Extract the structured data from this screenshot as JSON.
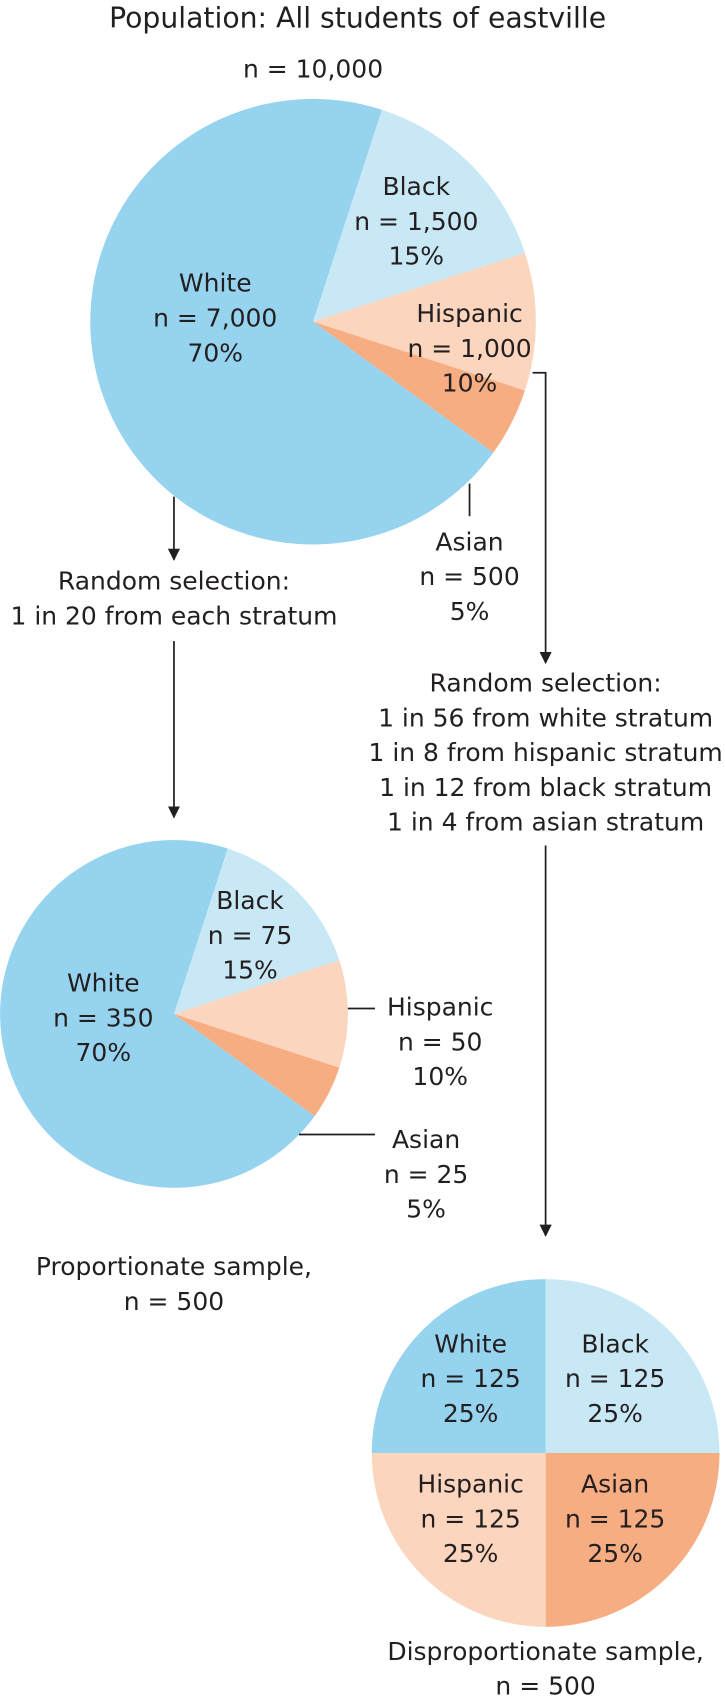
{
  "title": "Population: All students of eastville",
  "chart_data": [
    {
      "type": "pie",
      "subtitle": "n = 10,000",
      "categories": [
        "Black",
        "Hispanic",
        "Asian",
        "White"
      ],
      "values": [
        15,
        10,
        5,
        70
      ],
      "value_labels": [
        "15%",
        "10%",
        "5%",
        "70%"
      ],
      "count_labels": [
        "n = 1,500",
        "n = 1,000",
        "n = 500",
        "n = 7,000"
      ],
      "colors": [
        "#c9e8f6",
        "#fbd5bd",
        "#f6ad82",
        "#96d3ee"
      ]
    },
    {
      "type": "pie",
      "caption": [
        "Proportionate sample,",
        "n = 500"
      ],
      "categories": [
        "Black",
        "Hispanic",
        "Asian",
        "White"
      ],
      "values": [
        15,
        10,
        5,
        70
      ],
      "value_labels": [
        "15%",
        "10%",
        "5%",
        "70%"
      ],
      "count_labels": [
        "n = 75",
        "n = 50",
        "n = 25",
        "n = 350"
      ],
      "colors": [
        "#c9e8f6",
        "#fbd5bd",
        "#f6ad82",
        "#96d3ee"
      ]
    },
    {
      "type": "pie",
      "caption": [
        "Disproportionate sample,",
        "n = 500"
      ],
      "categories": [
        "Black",
        "Asian",
        "Hispanic",
        "White"
      ],
      "values": [
        25,
        25,
        25,
        25
      ],
      "value_labels": [
        "25%",
        "25%",
        "25%",
        "25%"
      ],
      "count_labels": [
        "n = 125",
        "n = 125",
        "n = 125",
        "n = 125"
      ],
      "colors": [
        "#c9e8f6",
        "#f6ad82",
        "#fbd5bd",
        "#96d3ee"
      ]
    }
  ],
  "selection_notes": [
    [
      "Random selection:",
      "1 in 20 from each stratum"
    ],
    [
      "Random selection:",
      "1 in 56 from white stratum",
      "1 in 8 from hispanic stratum",
      "1 in 12 from black stratum",
      "1 in 4 from asian stratum"
    ]
  ]
}
